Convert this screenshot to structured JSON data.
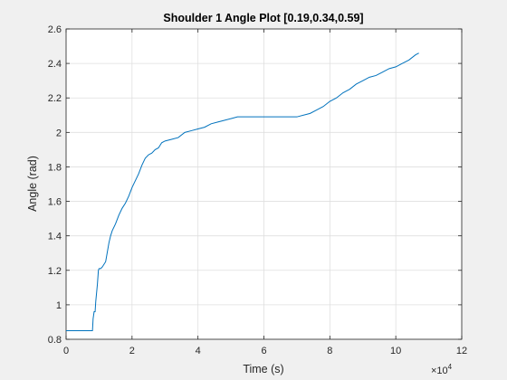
{
  "chart_data": {
    "type": "line",
    "title": "Shoulder 1 Angle Plot [0.19,0.34,0.59]",
    "xlabel": "Time (s)",
    "ylabel": "Angle (rad)",
    "x_exponent_base": "×10",
    "x_exponent_power": "4",
    "xlim": [
      0,
      12
    ],
    "ylim": [
      0.8,
      2.6
    ],
    "xticks": [
      0,
      2,
      4,
      6,
      8,
      10,
      12
    ],
    "xtick_labels": [
      "0",
      "2",
      "4",
      "6",
      "8",
      "10",
      "12"
    ],
    "yticks": [
      0.8,
      1.0,
      1.2,
      1.4,
      1.6,
      1.8,
      2.0,
      2.2,
      2.4,
      2.6
    ],
    "ytick_labels": [
      "0.8",
      "1",
      "1.2",
      "1.4",
      "1.6",
      "1.8",
      "2",
      "2.2",
      "2.4",
      "2.6"
    ],
    "grid": true,
    "line_color": "#0072bd",
    "series": [
      {
        "x": [
          0,
          0.7,
          0.8,
          0.82,
          0.85,
          0.88,
          0.9,
          0.95,
          0.98,
          1.0,
          1.02,
          1.05,
          1.1,
          1.2,
          1.3,
          1.35,
          1.4,
          1.5,
          1.6,
          1.7,
          1.8,
          1.9,
          2.0,
          2.1,
          2.2,
          2.3,
          2.4,
          2.5,
          2.6,
          2.7,
          2.8,
          2.9,
          3.0,
          3.2,
          3.4,
          3.6,
          3.8,
          4.0,
          4.2,
          4.4,
          4.6,
          4.8,
          5.0,
          5.2,
          5.6,
          6.0,
          6.5,
          7.0,
          7.4,
          7.6,
          7.8,
          8.0,
          8.2,
          8.4,
          8.6,
          8.8,
          9.0,
          9.2,
          9.4,
          9.6,
          9.8,
          10.0,
          10.2,
          10.4,
          10.6,
          10.7
        ],
        "y": [
          0.85,
          0.85,
          0.85,
          0.92,
          0.96,
          0.96,
          1.02,
          1.12,
          1.2,
          1.21,
          1.21,
          1.21,
          1.22,
          1.25,
          1.36,
          1.4,
          1.43,
          1.47,
          1.52,
          1.56,
          1.59,
          1.63,
          1.68,
          1.72,
          1.76,
          1.81,
          1.85,
          1.87,
          1.88,
          1.9,
          1.91,
          1.94,
          1.95,
          1.96,
          1.97,
          2.0,
          2.01,
          2.02,
          2.03,
          2.05,
          2.06,
          2.07,
          2.08,
          2.09,
          2.09,
          2.09,
          2.09,
          2.09,
          2.11,
          2.13,
          2.15,
          2.18,
          2.2,
          2.23,
          2.25,
          2.28,
          2.3,
          2.32,
          2.33,
          2.35,
          2.37,
          2.38,
          2.4,
          2.42,
          2.45,
          2.46
        ]
      }
    ]
  }
}
